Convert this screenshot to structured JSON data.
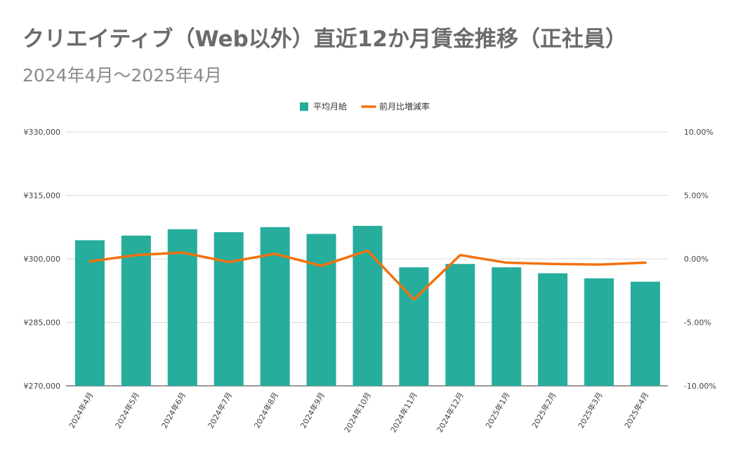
{
  "chart_data": {
    "type": "bar",
    "title": "クリエイティブ（Web以外）直近12か月賃金推移（正社員）",
    "subtitle": "2024年4月～2025年4月",
    "categories": [
      "2024年4月",
      "2024年5月",
      "2024年6月",
      "2024年7月",
      "2024年8月",
      "2024年9月",
      "2024年10月",
      "2024年11月",
      "2024年12月",
      "2025年1月",
      "2025年2月",
      "2025年3月",
      "2025年4月"
    ],
    "series": [
      {
        "name": "平均月給",
        "type": "bar",
        "axis": "left",
        "color": "#26ad9c",
        "values": [
          304400,
          305500,
          307000,
          306300,
          307500,
          305900,
          307800,
          298000,
          298800,
          298000,
          296600,
          295400,
          294600
        ]
      },
      {
        "name": "前月比増減率",
        "type": "line",
        "axis": "right",
        "color": "#f3710e",
        "values": [
          -0.2,
          0.3,
          0.5,
          -0.25,
          0.4,
          -0.55,
          0.65,
          -3.2,
          0.3,
          -0.3,
          -0.4,
          -0.45,
          -0.3
        ]
      }
    ],
    "y_left": {
      "ylim": [
        270000,
        330000
      ],
      "ticks": [
        270000,
        285000,
        300000,
        315000,
        330000
      ],
      "tick_labels": [
        "¥270,000",
        "¥285,000",
        "¥300,000",
        "¥315,000",
        "¥330,000"
      ]
    },
    "y_right": {
      "ylim": [
        -10,
        10
      ],
      "ticks": [
        -10,
        -5,
        0,
        5,
        10
      ],
      "tick_labels": [
        "-10.00%",
        "-5.00%",
        "0.00%",
        "5.00%",
        "10.00%"
      ]
    },
    "legend_position": "top-center",
    "grid": true
  }
}
